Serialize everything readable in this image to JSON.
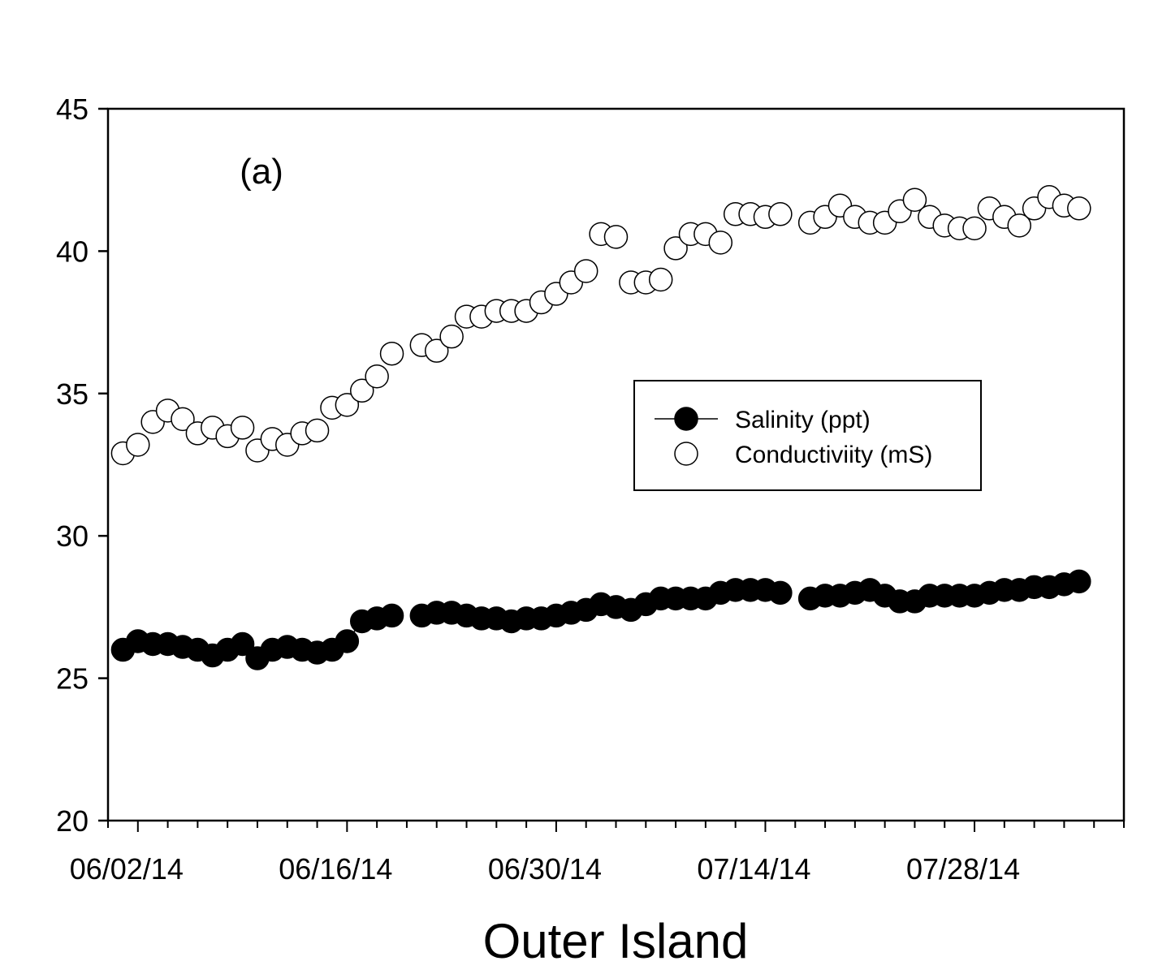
{
  "chart_data": {
    "type": "scatter",
    "panel_label": "(a)",
    "xlabel": "Outer Island",
    "ylabel": "",
    "x_axis": {
      "type": "date",
      "range": [
        "2014-05-31",
        "2014-08-07"
      ],
      "tick_labels": [
        "06/02/14",
        "06/16/14",
        "06/30/14",
        "07/14/14",
        "07/28/14"
      ]
    },
    "ylim": [
      20,
      45
    ],
    "y_ticks": [
      20,
      25,
      30,
      35,
      40,
      45
    ],
    "grid": false,
    "legend_position": "center-right",
    "series": [
      {
        "name": "Salinity (ppt)",
        "marker": "filled-circle",
        "color": "#000000",
        "points": [
          [
            "2014-06-01",
            26.0
          ],
          [
            "2014-06-02",
            26.3
          ],
          [
            "2014-06-03",
            26.2
          ],
          [
            "2014-06-04",
            26.2
          ],
          [
            "2014-06-05",
            26.1
          ],
          [
            "2014-06-06",
            26.0
          ],
          [
            "2014-06-07",
            25.8
          ],
          [
            "2014-06-08",
            26.0
          ],
          [
            "2014-06-09",
            26.2
          ],
          [
            "2014-06-10",
            25.7
          ],
          [
            "2014-06-11",
            26.0
          ],
          [
            "2014-06-12",
            26.1
          ],
          [
            "2014-06-13",
            26.0
          ],
          [
            "2014-06-14",
            25.9
          ],
          [
            "2014-06-15",
            26.0
          ],
          [
            "2014-06-16",
            26.3
          ],
          [
            "2014-06-17",
            27.0
          ],
          [
            "2014-06-18",
            27.1
          ],
          [
            "2014-06-19",
            27.2
          ],
          [
            "2014-06-21",
            27.2
          ],
          [
            "2014-06-22",
            27.3
          ],
          [
            "2014-06-23",
            27.3
          ],
          [
            "2014-06-24",
            27.2
          ],
          [
            "2014-06-25",
            27.1
          ],
          [
            "2014-06-26",
            27.1
          ],
          [
            "2014-06-27",
            27.0
          ],
          [
            "2014-06-28",
            27.1
          ],
          [
            "2014-06-29",
            27.1
          ],
          [
            "2014-06-30",
            27.2
          ],
          [
            "2014-07-01",
            27.3
          ],
          [
            "2014-07-02",
            27.4
          ],
          [
            "2014-07-03",
            27.6
          ],
          [
            "2014-07-04",
            27.5
          ],
          [
            "2014-07-05",
            27.4
          ],
          [
            "2014-07-06",
            27.6
          ],
          [
            "2014-07-07",
            27.8
          ],
          [
            "2014-07-08",
            27.8
          ],
          [
            "2014-07-09",
            27.8
          ],
          [
            "2014-07-10",
            27.8
          ],
          [
            "2014-07-11",
            28.0
          ],
          [
            "2014-07-12",
            28.1
          ],
          [
            "2014-07-13",
            28.1
          ],
          [
            "2014-07-14",
            28.1
          ],
          [
            "2014-07-15",
            28.0
          ],
          [
            "2014-07-17",
            27.8
          ],
          [
            "2014-07-18",
            27.9
          ],
          [
            "2014-07-19",
            27.9
          ],
          [
            "2014-07-20",
            28.0
          ],
          [
            "2014-07-21",
            28.1
          ],
          [
            "2014-07-22",
            27.9
          ],
          [
            "2014-07-23",
            27.7
          ],
          [
            "2014-07-24",
            27.7
          ],
          [
            "2014-07-25",
            27.9
          ],
          [
            "2014-07-26",
            27.9
          ],
          [
            "2014-07-27",
            27.9
          ],
          [
            "2014-07-28",
            27.9
          ],
          [
            "2014-07-29",
            28.0
          ],
          [
            "2014-07-30",
            28.1
          ],
          [
            "2014-07-31",
            28.1
          ],
          [
            "2014-08-01",
            28.2
          ],
          [
            "2014-08-02",
            28.2
          ],
          [
            "2014-08-03",
            28.3
          ],
          [
            "2014-08-04",
            28.4
          ]
        ]
      },
      {
        "name": "Conductiviity (mS)",
        "marker": "open-circle",
        "color": "#000000",
        "points": [
          [
            "2014-06-01",
            32.9
          ],
          [
            "2014-06-02",
            33.2
          ],
          [
            "2014-06-03",
            34.0
          ],
          [
            "2014-06-04",
            34.4
          ],
          [
            "2014-06-05",
            34.1
          ],
          [
            "2014-06-06",
            33.6
          ],
          [
            "2014-06-07",
            33.8
          ],
          [
            "2014-06-08",
            33.5
          ],
          [
            "2014-06-09",
            33.8
          ],
          [
            "2014-06-10",
            33.0
          ],
          [
            "2014-06-11",
            33.4
          ],
          [
            "2014-06-12",
            33.2
          ],
          [
            "2014-06-13",
            33.6
          ],
          [
            "2014-06-14",
            33.7
          ],
          [
            "2014-06-15",
            34.5
          ],
          [
            "2014-06-16",
            34.6
          ],
          [
            "2014-06-17",
            35.1
          ],
          [
            "2014-06-18",
            35.6
          ],
          [
            "2014-06-19",
            36.4
          ],
          [
            "2014-06-21",
            36.7
          ],
          [
            "2014-06-22",
            36.5
          ],
          [
            "2014-06-23",
            37.0
          ],
          [
            "2014-06-24",
            37.7
          ],
          [
            "2014-06-25",
            37.7
          ],
          [
            "2014-06-26",
            37.9
          ],
          [
            "2014-06-27",
            37.9
          ],
          [
            "2014-06-28",
            37.9
          ],
          [
            "2014-06-29",
            38.2
          ],
          [
            "2014-06-30",
            38.5
          ],
          [
            "2014-07-01",
            38.9
          ],
          [
            "2014-07-02",
            39.3
          ],
          [
            "2014-07-03",
            40.6
          ],
          [
            "2014-07-04",
            40.5
          ],
          [
            "2014-07-05",
            38.9
          ],
          [
            "2014-07-06",
            38.9
          ],
          [
            "2014-07-07",
            39.0
          ],
          [
            "2014-07-08",
            40.1
          ],
          [
            "2014-07-09",
            40.6
          ],
          [
            "2014-07-10",
            40.6
          ],
          [
            "2014-07-11",
            40.3
          ],
          [
            "2014-07-12",
            41.3
          ],
          [
            "2014-07-13",
            41.3
          ],
          [
            "2014-07-14",
            41.2
          ],
          [
            "2014-07-15",
            41.3
          ],
          [
            "2014-07-17",
            41.0
          ],
          [
            "2014-07-18",
            41.2
          ],
          [
            "2014-07-19",
            41.6
          ],
          [
            "2014-07-20",
            41.2
          ],
          [
            "2014-07-21",
            41.0
          ],
          [
            "2014-07-22",
            41.0
          ],
          [
            "2014-07-23",
            41.4
          ],
          [
            "2014-07-24",
            41.8
          ],
          [
            "2014-07-25",
            41.2
          ],
          [
            "2014-07-26",
            40.9
          ],
          [
            "2014-07-27",
            40.8
          ],
          [
            "2014-07-28",
            40.8
          ],
          [
            "2014-07-29",
            41.5
          ],
          [
            "2014-07-30",
            41.2
          ],
          [
            "2014-07-31",
            40.9
          ],
          [
            "2014-08-01",
            41.5
          ],
          [
            "2014-08-02",
            41.9
          ],
          [
            "2014-08-03",
            41.6
          ],
          [
            "2014-08-04",
            41.5
          ]
        ]
      }
    ]
  }
}
